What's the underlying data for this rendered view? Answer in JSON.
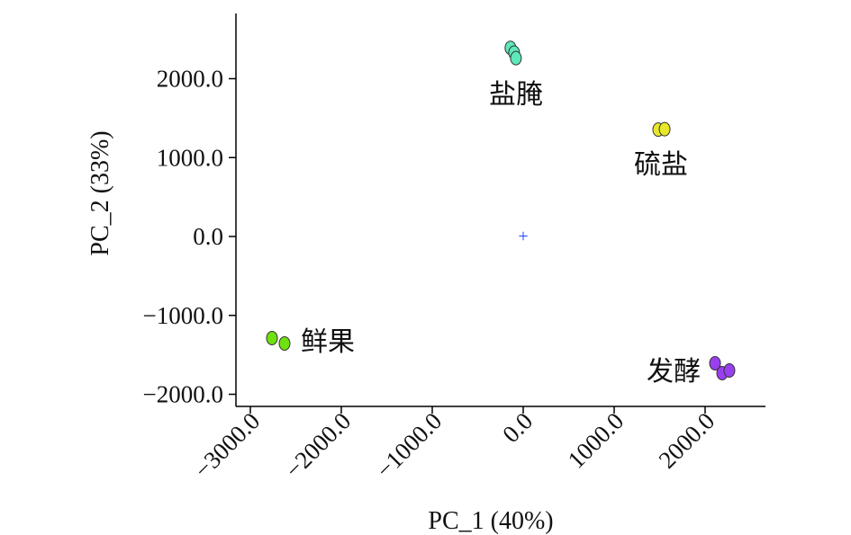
{
  "chart_data": {
    "type": "scatter",
    "xlabel": "PC_1 (40%)",
    "ylabel": "PC_2 (33%)",
    "xlim": [
      -3150,
      2700
    ],
    "ylim": [
      -2150,
      2800
    ],
    "x_ticks": [
      -3000,
      -2000,
      -1000,
      0,
      1000,
      2000
    ],
    "x_tick_labels": [
      "−3000.0",
      "−2000.0",
      "−1000.0",
      "0.0",
      "1000.0",
      "2000.0"
    ],
    "y_ticks": [
      -2000,
      -1000,
      0,
      1000,
      2000
    ],
    "y_tick_labels": [
      "−2000.0",
      "−1000.0",
      "0.0",
      "1000.0",
      "2000.0"
    ],
    "grid": false,
    "origin_marker": {
      "symbol": "+",
      "color": "#1f3fff",
      "x": 0,
      "y": 0
    },
    "groups": [
      {
        "name": "盐腌",
        "color": "#5fe8b8",
        "points": [
          [
            -140,
            2390
          ],
          [
            -100,
            2330
          ],
          [
            -80,
            2260
          ]
        ]
      },
      {
        "name": "硫盐",
        "color": "#e8e82a",
        "points": [
          [
            1485,
            1355
          ],
          [
            1555,
            1360
          ]
        ]
      },
      {
        "name": "鲜果",
        "color": "#6fe010",
        "points": [
          [
            -2762,
            -1288
          ],
          [
            -2624,
            -1356
          ]
        ]
      },
      {
        "name": "发酵",
        "color": "#9a3ff0",
        "points": [
          [
            2109,
            -1607
          ],
          [
            2188,
            -1732
          ],
          [
            2267,
            -1698
          ]
        ]
      }
    ]
  }
}
